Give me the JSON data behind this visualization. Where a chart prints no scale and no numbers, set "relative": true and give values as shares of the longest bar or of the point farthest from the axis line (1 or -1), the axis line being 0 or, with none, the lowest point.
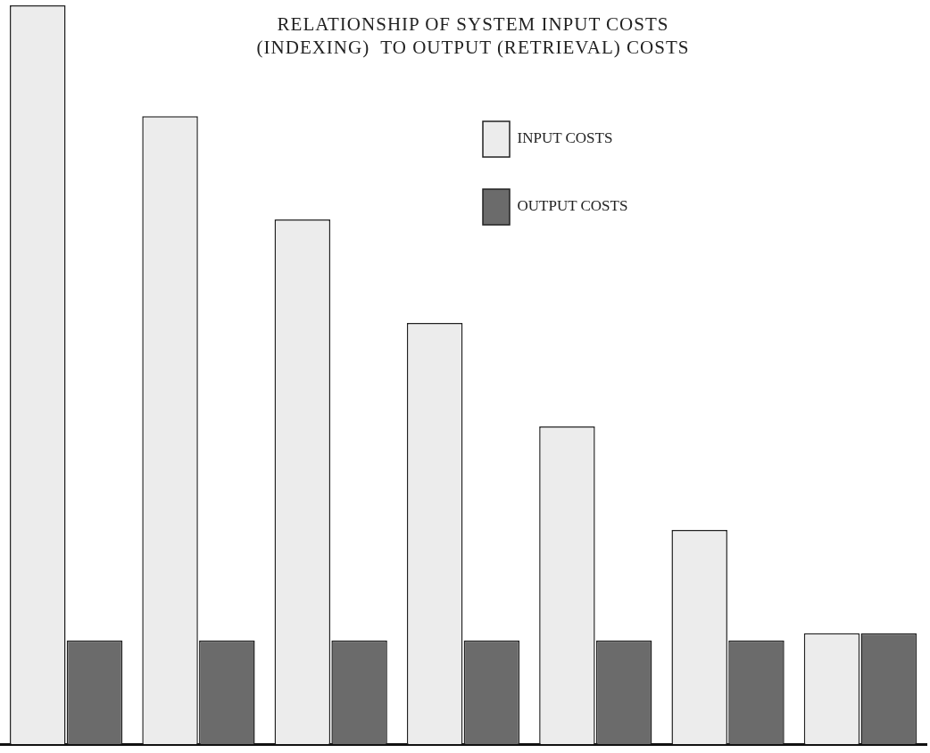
{
  "chart_data": {
    "type": "bar",
    "title": "RELATIONSHIP OF SYSTEM INPUT COSTS\n(INDEXING)  TO OUTPUT (RETRIEVAL) COSTS",
    "relative": true,
    "categories": [
      null,
      null,
      null,
      null,
      null,
      null,
      null
    ],
    "series": [
      {
        "name": "INPUT COSTS",
        "color": "#ececec",
        "values": [
          1,
          0.85,
          0.71,
          0.57,
          0.43,
          0.29,
          0.15
        ]
      },
      {
        "name": "OUTPUT COSTS",
        "color": "#6b6b6b",
        "values": [
          0.14,
          0.14,
          0.14,
          0.14,
          0.14,
          0.14,
          0.15
        ]
      }
    ],
    "legend": "top right",
    "grid": false
  }
}
